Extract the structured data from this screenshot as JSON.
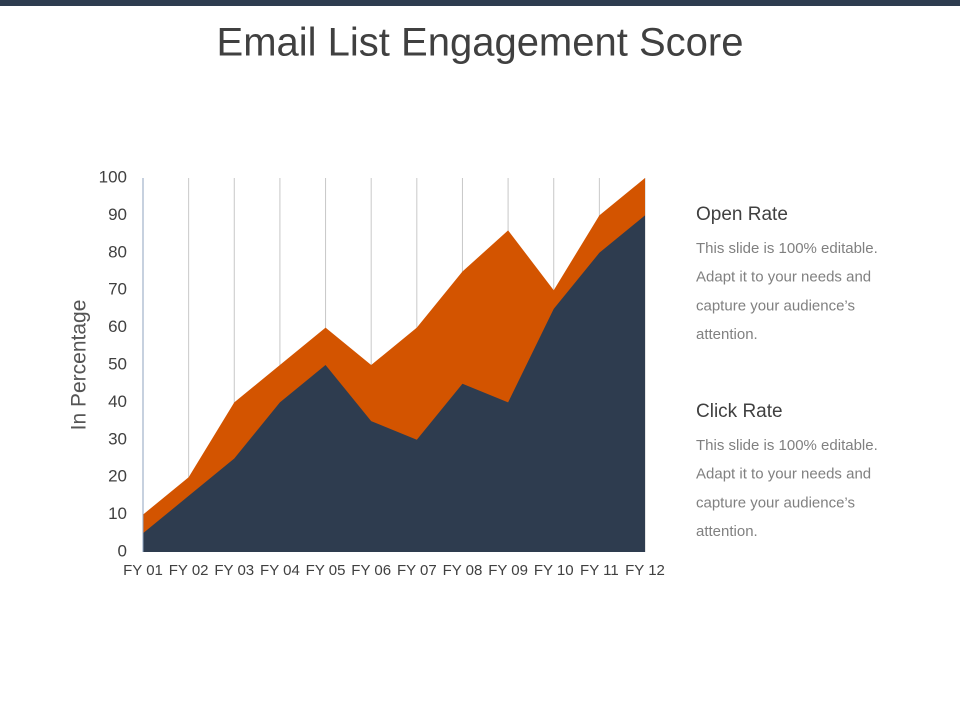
{
  "chart_data": {
    "type": "area",
    "title": "Email List Engagement Score",
    "y_label": "In Percentage",
    "categories": [
      "FY 01",
      "FY 02",
      "FY 03",
      "FY 04",
      "FY 05",
      "FY 06",
      "FY 07",
      "FY 08",
      "FY 09",
      "FY 10",
      "FY 11",
      "FY 12"
    ],
    "series": [
      {
        "name": "Open Rate",
        "color": "#d35400",
        "values": [
          10,
          20,
          40,
          50,
          60,
          50,
          60,
          75,
          86,
          70,
          90,
          100
        ],
        "description": [
          "This slide is 100% editable.",
          "Adapt it to your needs and",
          "capture your audience’s",
          "attention."
        ]
      },
      {
        "name": "Click Rate",
        "color": "#2e3c4f",
        "values": [
          5,
          15,
          25,
          40,
          50,
          35,
          30,
          45,
          40,
          65,
          80,
          90
        ],
        "description": [
          "This slide is 100% editable.",
          "Adapt it to your needs and",
          "capture your audience’s",
          "attention."
        ]
      }
    ],
    "ylim": [
      0,
      100
    ],
    "yticks": [
      0,
      10,
      20,
      30,
      40,
      50,
      60,
      70,
      80,
      90,
      100
    ],
    "grid": true
  }
}
